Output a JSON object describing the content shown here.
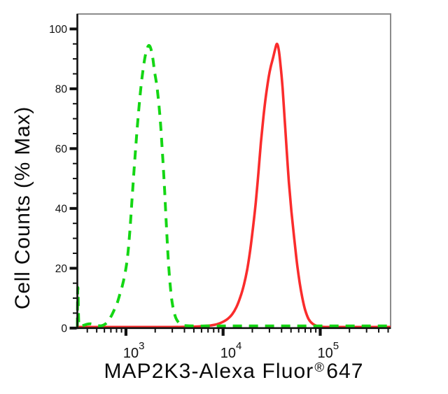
{
  "chart_data": {
    "type": "line",
    "title": "",
    "xlabel_parts": {
      "main": "MAP2K3-Alexa Fluor",
      "sup": "®",
      "suffix": "647"
    },
    "ylabel": "Cell Counts (% Max)",
    "x_scale": "log",
    "xlim": [
      316,
      530000
    ],
    "ylim": [
      0,
      105
    ],
    "grid": false,
    "legend": "none",
    "background_color": "#ffffff",
    "axis_color": "#111111",
    "frame_color": "#8c8c8c",
    "x_major_ticks": [
      {
        "value": 1000,
        "base": "10",
        "exp": "3"
      },
      {
        "value": 10000,
        "base": "10",
        "exp": "4"
      },
      {
        "value": 100000,
        "base": "10",
        "exp": "5"
      }
    ],
    "x_minor_tick_values": [
      400,
      500,
      600,
      700,
      800,
      900,
      2000,
      3000,
      4000,
      5000,
      6000,
      7000,
      8000,
      9000,
      20000,
      30000,
      40000,
      50000,
      60000,
      70000,
      80000,
      90000,
      200000,
      300000,
      400000,
      500000
    ],
    "y_major_ticks": [
      {
        "value": 100,
        "label": "100"
      },
      {
        "value": 80,
        "label": "80"
      },
      {
        "value": 60,
        "label": "60"
      },
      {
        "value": 40,
        "label": "40"
      },
      {
        "value": 20,
        "label": "20"
      },
      {
        "value": 0,
        "label": "0"
      }
    ],
    "y_minor_step": 5,
    "series": [
      {
        "name": "red-solid-curve",
        "style": "solid",
        "color": "#fa2c2c",
        "line_width": 3.6,
        "peak_value": 35800,
        "peak_percent": 95,
        "points": [
          [
            316,
            0.35
          ],
          [
            450,
            0.35
          ],
          [
            650,
            0.35
          ],
          [
            950,
            0.35
          ],
          [
            1400,
            0.35
          ],
          [
            2000,
            0.35
          ],
          [
            2900,
            0.35
          ],
          [
            4100,
            0.4
          ],
          [
            5300,
            0.5
          ],
          [
            6400,
            0.7
          ],
          [
            7500,
            0.9
          ],
          [
            8700,
            1.3
          ],
          [
            10000,
            2.1
          ],
          [
            11200,
            3.1
          ],
          [
            12400,
            4.6
          ],
          [
            13700,
            7
          ],
          [
            15100,
            10.5
          ],
          [
            16400,
            14.5
          ],
          [
            17700,
            19.5
          ],
          [
            19000,
            26
          ],
          [
            20300,
            33.5
          ],
          [
            21700,
            42
          ],
          [
            23100,
            52
          ],
          [
            24500,
            62
          ],
          [
            26000,
            70.5
          ],
          [
            27700,
            78
          ],
          [
            29500,
            84
          ],
          [
            31000,
            87.5
          ],
          [
            32500,
            90
          ],
          [
            34100,
            92.8
          ],
          [
            35800,
            95
          ],
          [
            37400,
            93
          ],
          [
            39000,
            88
          ],
          [
            41000,
            80
          ],
          [
            43000,
            70
          ],
          [
            45000,
            60
          ],
          [
            47500,
            49
          ],
          [
            50500,
            39
          ],
          [
            54000,
            30
          ],
          [
            57500,
            22
          ],
          [
            61500,
            15
          ],
          [
            65500,
            10
          ],
          [
            70000,
            6
          ],
          [
            76000,
            3
          ],
          [
            83000,
            1.5
          ],
          [
            92000,
            0.7
          ],
          [
            100000,
            0.45
          ],
          [
            120000,
            0.35
          ],
          [
            170000,
            0.35
          ],
          [
            250000,
            0.35
          ],
          [
            380000,
            0.35
          ],
          [
            530000,
            0.35
          ]
        ]
      },
      {
        "name": "green-dashed-curve",
        "style": "dashed",
        "color": "#14d614",
        "line_width": 4,
        "dash_array": "13 10",
        "peak_value": 1725,
        "peak_percent": 94.5,
        "points": [
          [
            316,
            0.5
          ],
          [
            317,
            6
          ],
          [
            318,
            12
          ],
          [
            320,
            13.5
          ],
          [
            322,
            11
          ],
          [
            325,
            4
          ],
          [
            328,
            1.2
          ],
          [
            336,
            0.7
          ],
          [
            365,
            0.9
          ],
          [
            400,
            1.3
          ],
          [
            435,
            1.4
          ],
          [
            475,
            1.1
          ],
          [
            520,
            0.8
          ],
          [
            565,
            0.8
          ],
          [
            610,
            1.3
          ],
          [
            655,
            2.3
          ],
          [
            705,
            4
          ],
          [
            755,
            6
          ],
          [
            805,
            8
          ],
          [
            860,
            11
          ],
          [
            915,
            14
          ],
          [
            975,
            18
          ],
          [
            1040,
            24
          ],
          [
            1100,
            33
          ],
          [
            1160,
            44
          ],
          [
            1225,
            55
          ],
          [
            1300,
            66
          ],
          [
            1390,
            77
          ],
          [
            1480,
            85
          ],
          [
            1570,
            90.5
          ],
          [
            1655,
            93.5
          ],
          [
            1725,
            94.5
          ],
          [
            1800,
            93.5
          ],
          [
            1885,
            90.5
          ],
          [
            1965,
            86
          ],
          [
            2100,
            80
          ],
          [
            2250,
            70
          ],
          [
            2380,
            58
          ],
          [
            2500,
            46
          ],
          [
            2620,
            33
          ],
          [
            2750,
            21
          ],
          [
            2900,
            12
          ],
          [
            3050,
            7
          ],
          [
            3250,
            3.5
          ],
          [
            3500,
            1.8
          ],
          [
            3800,
            1
          ],
          [
            4200,
            0.8
          ],
          [
            5000,
            0.7
          ],
          [
            6500,
            0.7
          ],
          [
            8500,
            0.7
          ],
          [
            11000,
            0.7
          ],
          [
            14500,
            0.7
          ],
          [
            19000,
            0.7
          ],
          [
            25000,
            0.7
          ],
          [
            33000,
            0.7
          ],
          [
            44000,
            0.7
          ],
          [
            58000,
            0.7
          ],
          [
            77000,
            0.7
          ],
          [
            100000,
            0.7
          ],
          [
            135000,
            0.7
          ],
          [
            180000,
            0.7
          ],
          [
            240000,
            0.7
          ],
          [
            320000,
            0.7
          ],
          [
            420000,
            0.7
          ],
          [
            530000,
            0.7
          ]
        ]
      }
    ]
  }
}
